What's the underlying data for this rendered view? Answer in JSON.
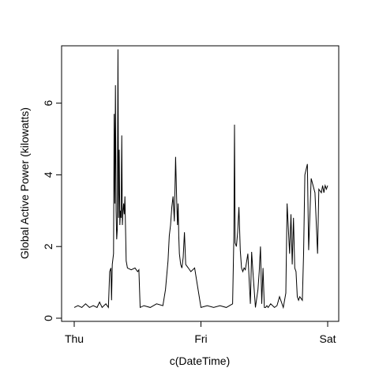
{
  "chart_data": {
    "type": "line",
    "title": "",
    "xlabel": "c(DateTime)",
    "ylabel": "Global Active Power (kilowatts)",
    "xlim": [
      0,
      2
    ],
    "ylim": [
      0,
      7.6
    ],
    "x_ticks": [
      {
        "value": 0,
        "label": "Thu"
      },
      {
        "value": 1,
        "label": "Fri"
      },
      {
        "value": 2,
        "label": "Sat"
      }
    ],
    "y_ticks": [
      0,
      2,
      4,
      6
    ],
    "grid": false,
    "legend": "none",
    "line_color": "#000000",
    "series": [
      {
        "x": [
          0,
          0.03,
          0.06,
          0.09,
          0.12,
          0.15,
          0.18,
          0.2,
          0.22,
          0.25,
          0.27,
          0.28,
          0.29,
          0.295,
          0.3,
          0.31,
          0.315,
          0.32,
          0.325,
          0.33,
          0.335,
          0.34,
          0.345,
          0.35,
          0.355,
          0.36,
          0.365,
          0.37,
          0.375,
          0.38,
          0.385,
          0.39,
          0.395,
          0.4,
          0.405,
          0.41,
          0.42,
          0.45,
          0.48,
          0.5,
          0.51,
          0.52,
          0.55,
          0.6,
          0.65,
          0.7,
          0.72,
          0.74,
          0.75,
          0.76,
          0.77,
          0.78,
          0.79,
          0.8,
          0.81,
          0.815,
          0.82,
          0.825,
          0.83,
          0.84,
          0.85,
          0.86,
          0.87,
          0.88,
          0.9,
          0.92,
          0.95,
          1.0,
          1.05,
          1.1,
          1.15,
          1.2,
          1.25,
          1.26,
          1.265,
          1.27,
          1.28,
          1.29,
          1.3,
          1.31,
          1.32,
          1.33,
          1.34,
          1.35,
          1.37,
          1.39,
          1.4,
          1.41,
          1.43,
          1.45,
          1.46,
          1.47,
          1.48,
          1.49,
          1.5,
          1.51,
          1.52,
          1.53,
          1.55,
          1.58,
          1.6,
          1.62,
          1.65,
          1.67,
          1.68,
          1.7,
          1.71,
          1.72,
          1.73,
          1.74,
          1.75,
          1.76,
          1.77,
          1.78,
          1.79,
          1.8,
          1.81,
          1.82,
          1.84,
          1.85,
          1.87,
          1.9,
          1.92,
          1.93,
          1.95,
          1.96,
          1.97,
          1.98,
          1.99,
          2.0
        ],
        "values": [
          0.3,
          0.35,
          0.3,
          0.4,
          0.3,
          0.35,
          0.3,
          0.45,
          0.3,
          0.4,
          0.3,
          1.3,
          1.4,
          0.5,
          1.5,
          1.8,
          5.7,
          3.2,
          6.5,
          3.0,
          2.2,
          2.5,
          7.5,
          2.8,
          4.7,
          2.6,
          3.0,
          2.8,
          5.1,
          2.6,
          3.0,
          3.2,
          2.9,
          3.4,
          2.5,
          1.6,
          1.4,
          1.35,
          1.4,
          1.3,
          1.35,
          0.3,
          0.35,
          0.3,
          0.4,
          0.35,
          0.8,
          1.6,
          2.3,
          2.6,
          3.1,
          3.4,
          2.7,
          4.5,
          3.1,
          2.6,
          3.2,
          2.3,
          1.8,
          1.5,
          1.4,
          1.7,
          2.4,
          1.5,
          1.4,
          1.3,
          1.4,
          0.3,
          0.35,
          0.3,
          0.35,
          0.3,
          0.4,
          2.3,
          5.4,
          2.1,
          2.0,
          2.4,
          3.1,
          1.9,
          1.4,
          1.3,
          1.4,
          1.35,
          1.8,
          0.4,
          1.85,
          1.3,
          0.3,
          0.8,
          1.3,
          2.0,
          0.4,
          1.4,
          0.3,
          0.3,
          0.35,
          0.3,
          0.4,
          0.3,
          0.35,
          0.6,
          0.3,
          0.7,
          3.2,
          1.8,
          2.9,
          1.5,
          2.8,
          1.4,
          1.3,
          0.6,
          0.5,
          0.6,
          0.55,
          0.5,
          1.8,
          4.0,
          4.3,
          1.9,
          3.9,
          3.5,
          1.8,
          3.6,
          3.5,
          3.7,
          3.5,
          3.7,
          3.6,
          3.7
        ]
      }
    ]
  }
}
